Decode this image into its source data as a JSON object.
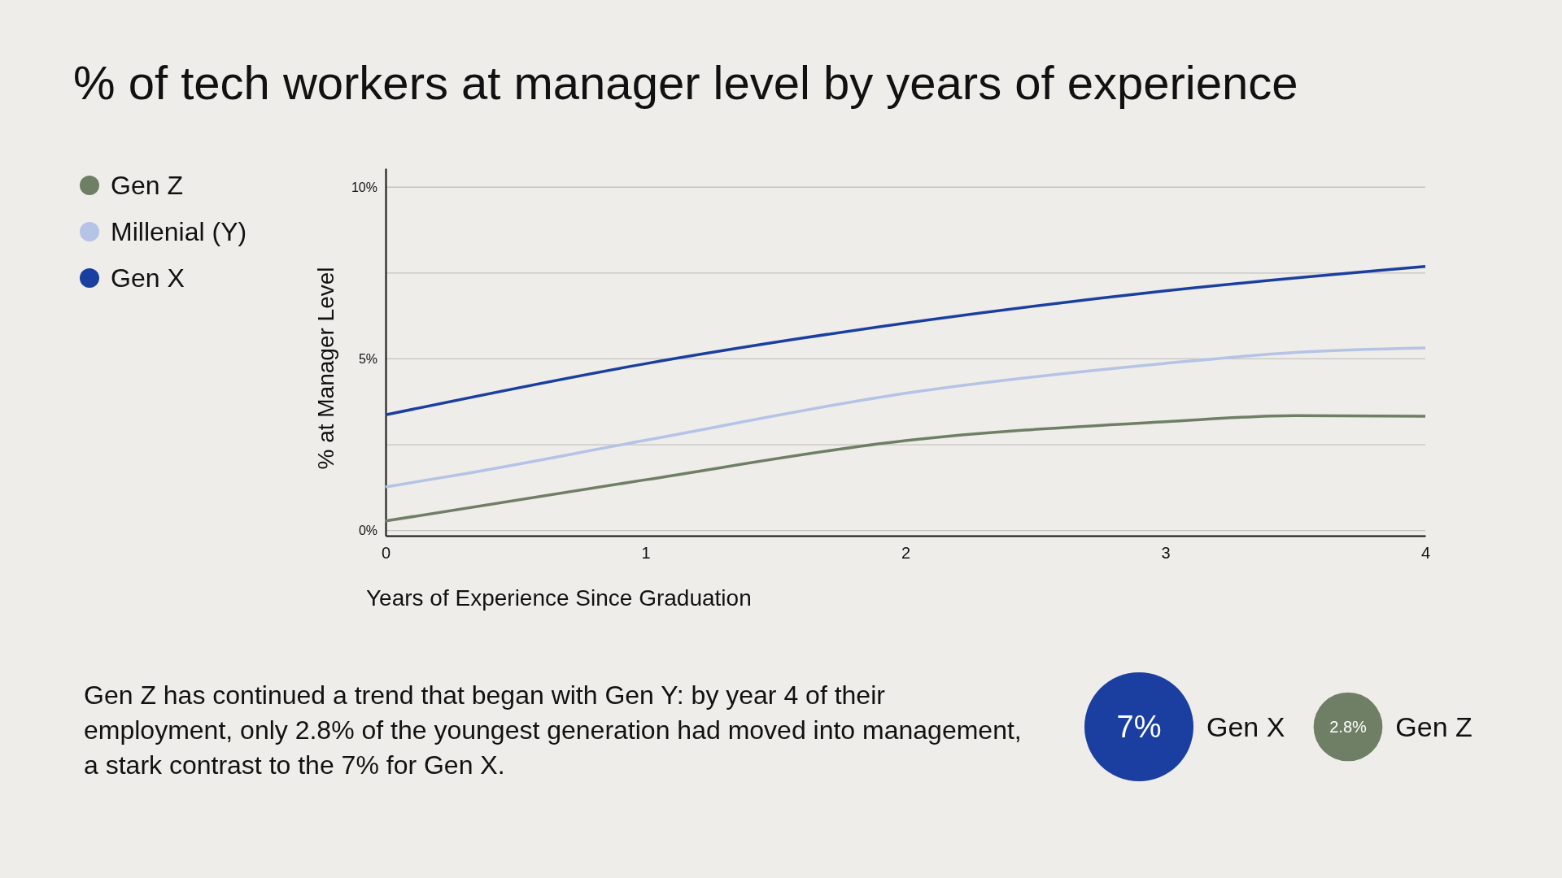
{
  "chart_data": [
    {
      "type": "line",
      "title": "% of tech workers at manager level by years of experience",
      "xlabel": "Years of Experience Since Graduation",
      "ylabel": "% at Manager Level",
      "xlim": [
        0,
        4
      ],
      "xticks": [
        0,
        1,
        2,
        3,
        4
      ],
      "ylim": [
        -0.15,
        10.55
      ],
      "yticks": [
        {
          "value": 0,
          "label": "0%"
        },
        {
          "value": 2.5,
          "label": null
        },
        {
          "value": 5,
          "label": "5%"
        },
        {
          "value": 7.5,
          "label": null
        },
        {
          "value": 10,
          "label": "10%"
        }
      ],
      "grid": "y",
      "legend": "top left",
      "series": [
        {
          "name": "Gen Z",
          "color": "#6e7f66",
          "x": [
            0,
            1,
            2,
            3,
            3.5,
            4
          ],
          "values": [
            0.28,
            1.48,
            2.62,
            3.17,
            3.35,
            3.33
          ]
        },
        {
          "name": "Millenial (Y)",
          "color": "#b4c3e6",
          "x": [
            0,
            0.3,
            1,
            2,
            3,
            3.5,
            4
          ],
          "values": [
            1.27,
            1.65,
            2.63,
            4.0,
            4.87,
            5.19,
            5.32
          ]
        },
        {
          "name": "Gen X",
          "color": "#1a3fa0",
          "x": [
            0,
            1,
            1.6,
            3,
            4
          ],
          "values": [
            3.37,
            4.86,
            5.6,
            6.98,
            7.69
          ]
        }
      ],
      "annotations": [
        "Gen Z has continued a trend that began with Gen Y: by year 4 of their employment, only 2.8% of the youngest generation had moved into management, a stark contrast to the 7% for Gen X."
      ]
    },
    {
      "type": "other",
      "categories": [
        "Gen X",
        "Gen Z"
      ],
      "values": [
        7,
        2.8
      ],
      "colors": [
        "#1a3fa0",
        "#6e7f66"
      ],
      "value_labels": [
        "7%",
        "2.8%"
      ]
    }
  ]
}
